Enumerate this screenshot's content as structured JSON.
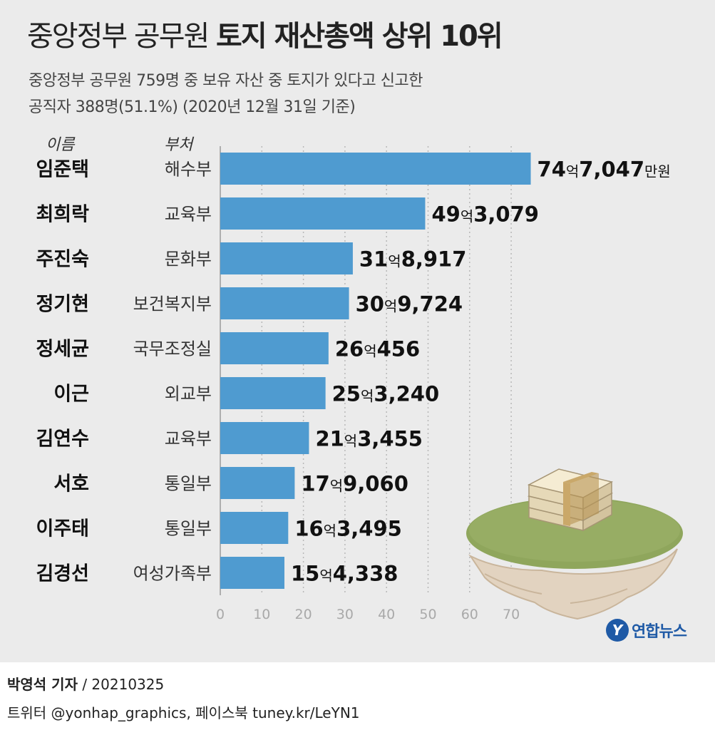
{
  "title": {
    "light": "중앙정부 공무원",
    "bold": "토지 재산총액 상위 10위"
  },
  "subtitle": [
    "중앙정부 공무원 759명 중 보유 자산 중 토지가 있다고 신고한",
    "공직자 388명(51.1%) (2020년 12월 31일 기준)"
  ],
  "column_headers": {
    "name": "이름",
    "ministry": "부처"
  },
  "chart_data": {
    "type": "bar",
    "orientation": "horizontal",
    "categories": [
      "임준택",
      "최희락",
      "주진숙",
      "정기현",
      "정세균",
      "이근",
      "김연수",
      "서호",
      "이주태",
      "김경선"
    ],
    "ministries": [
      "해수부",
      "교육부",
      "문화부",
      "보건복지부",
      "국무조정실",
      "외교부",
      "교육부",
      "통일부",
      "통일부",
      "여성가족부"
    ],
    "values": [
      74.7047,
      49.3079,
      31.8917,
      30.9724,
      26.0456,
      25.324,
      21.3455,
      17.906,
      16.3495,
      15.4338
    ],
    "labels": [
      {
        "eok": "74",
        "eok_unit": "억",
        "rest": "7,047",
        "man_unit": "만원"
      },
      {
        "eok": "49",
        "eok_unit": "억",
        "rest": "3,079",
        "man_unit": ""
      },
      {
        "eok": "31",
        "eok_unit": "억",
        "rest": "8,917",
        "man_unit": ""
      },
      {
        "eok": "30",
        "eok_unit": "억",
        "rest": "9,724",
        "man_unit": ""
      },
      {
        "eok": "26",
        "eok_unit": "억",
        "rest": "456",
        "man_unit": ""
      },
      {
        "eok": "25",
        "eok_unit": "억",
        "rest": "3,240",
        "man_unit": ""
      },
      {
        "eok": "21",
        "eok_unit": "억",
        "rest": "3,455",
        "man_unit": ""
      },
      {
        "eok": "17",
        "eok_unit": "억",
        "rest": "9,060",
        "man_unit": ""
      },
      {
        "eok": "16",
        "eok_unit": "억",
        "rest": "3,495",
        "man_unit": ""
      },
      {
        "eok": "15",
        "eok_unit": "억",
        "rest": "4,338",
        "man_unit": ""
      }
    ],
    "x_ticks": [
      "0",
      "10",
      "20",
      "30",
      "40",
      "50",
      "60",
      "70"
    ],
    "xlim": [
      0,
      80
    ],
    "bar_color": "#4f9bd0",
    "grid": "vertical dotted"
  },
  "logo": {
    "mark": "Y",
    "text": "연합뉴스"
  },
  "credits": {
    "author": "박영석 기자",
    "date": " /  20210325",
    "social": "트위터 @yonhap_graphics, 페이스북 tuney.kr/LeYN1"
  }
}
